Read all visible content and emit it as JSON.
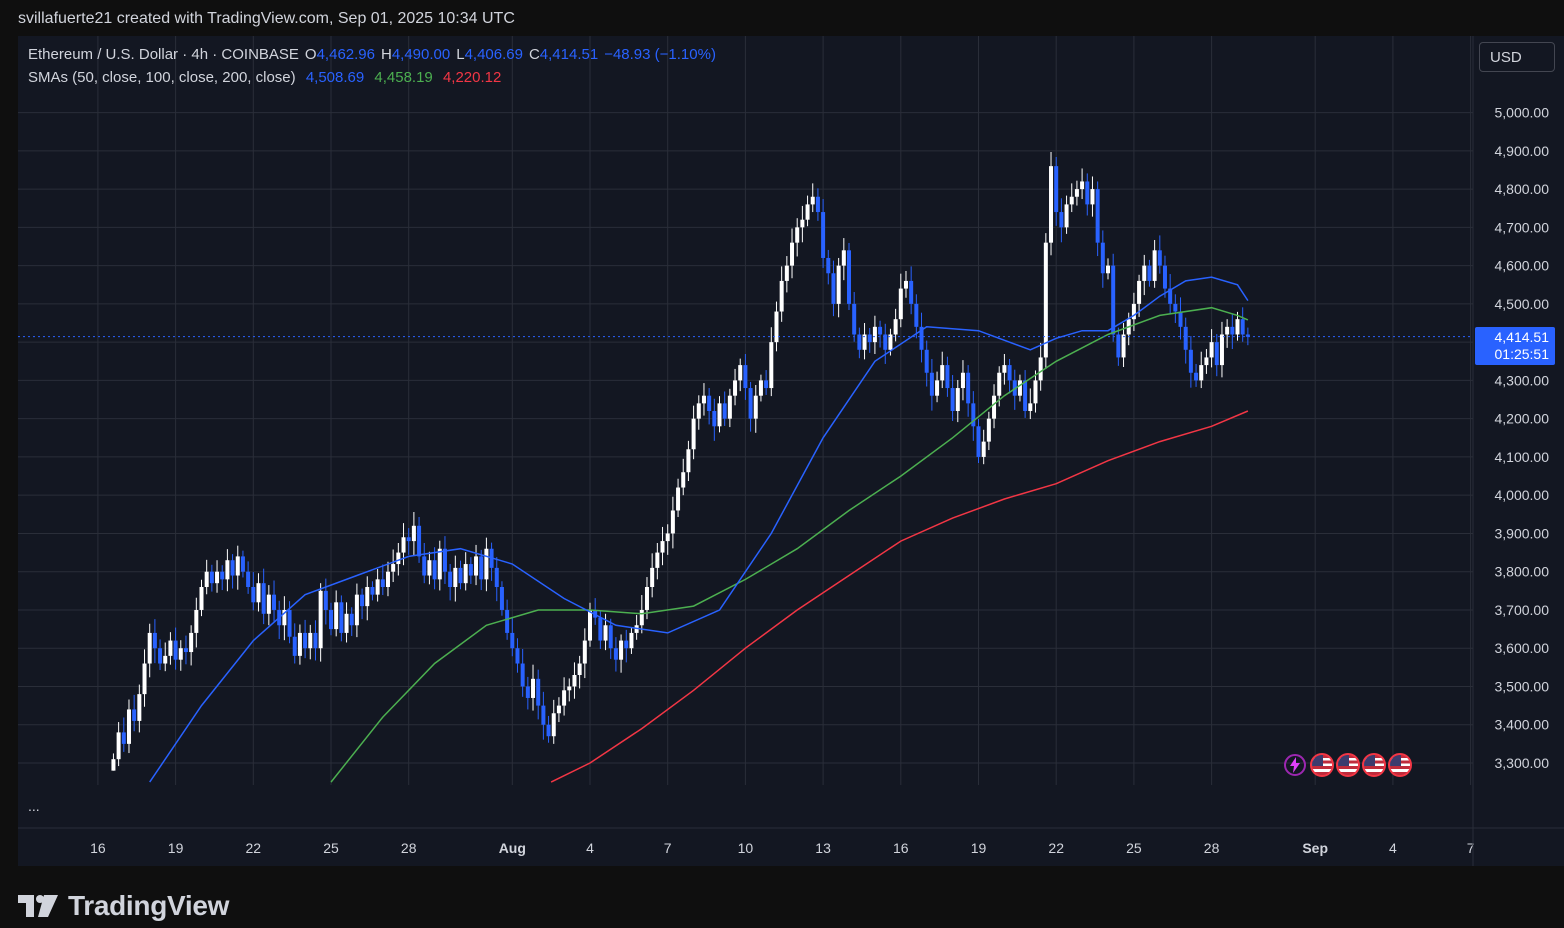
{
  "header": {
    "attribution": "svillafuerte21 created with TradingView.com, Sep 01, 2025 10:34 UTC"
  },
  "legend": {
    "symbol": "Ethereum / U.S. Dollar · 4h · COINBASE",
    "o_label": "O",
    "o_value": "4,462.96",
    "h_label": "H",
    "h_value": "4,490.00",
    "l_label": "L",
    "l_value": "4,406.69",
    "c_label": "C",
    "c_value": "4,414.51",
    "change": "−48.93 (−1.10%)",
    "sma_label": "SMAs (50, close, 100, close, 200, close)",
    "sma50": "4,508.69",
    "sma100": "4,458.19",
    "sma200": "4,220.12"
  },
  "currency_button": "USD",
  "last_price": {
    "price": "4,414.51",
    "countdown": "01:25:51"
  },
  "more_button": "...",
  "footer": {
    "brand": "TradingView"
  },
  "colors": {
    "up": "#ffffff",
    "down": "#2962ff",
    "sma50": "#2962ff",
    "sma100": "#4caf50",
    "sma200": "#f23645",
    "background": "#131722",
    "grid": "#2a2e39"
  },
  "chart_data": {
    "type": "candlestick",
    "ylim": [
      3250,
      5100
    ],
    "y_ticks": [
      3300,
      3400,
      3500,
      3600,
      3700,
      3800,
      3900,
      4000,
      4100,
      4200,
      4300,
      4400,
      4500,
      4600,
      4700,
      4800,
      4900,
      5000
    ],
    "y_tick_labels": [
      "3,300.00",
      "3,400.00",
      "3,500.00",
      "3,600.00",
      "3,700.00",
      "3,800.00",
      "3,900.00",
      "4,000.00",
      "4,100.00",
      "4,200.00",
      "4,300.00",
      "4,400.00",
      "4,500.00",
      "4,600.00",
      "4,700.00",
      "4,800.00",
      "4,900.00",
      "5,000.00"
    ],
    "x_day_range": [
      0,
      55.5
    ],
    "x_ticks": [
      {
        "day": 1,
        "label": "16"
      },
      {
        "day": 4,
        "label": "19"
      },
      {
        "day": 7,
        "label": "22"
      },
      {
        "day": 10,
        "label": "25"
      },
      {
        "day": 13,
        "label": "28"
      },
      {
        "day": 17,
        "label": "Aug"
      },
      {
        "day": 20,
        "label": "4"
      },
      {
        "day": 23,
        "label": "7"
      },
      {
        "day": 26,
        "label": "10"
      },
      {
        "day": 29,
        "label": "13"
      },
      {
        "day": 32,
        "label": "16"
      },
      {
        "day": 35,
        "label": "19"
      },
      {
        "day": 38,
        "label": "22"
      },
      {
        "day": 41,
        "label": "25"
      },
      {
        "day": 44,
        "label": "28"
      },
      {
        "day": 48,
        "label": "Sep"
      },
      {
        "day": 51,
        "label": "4"
      },
      {
        "day": 54,
        "label": "7"
      }
    ],
    "series_close": [
      [
        1.6,
        3310
      ],
      [
        1.8,
        3380
      ],
      [
        2.0,
        3350
      ],
      [
        2.2,
        3440
      ],
      [
        2.4,
        3410
      ],
      [
        2.6,
        3480
      ],
      [
        2.8,
        3560
      ],
      [
        3.0,
        3640
      ],
      [
        3.2,
        3600
      ],
      [
        3.4,
        3560
      ],
      [
        3.6,
        3580
      ],
      [
        3.8,
        3620
      ],
      [
        4.0,
        3570
      ],
      [
        4.2,
        3600
      ],
      [
        4.4,
        3590
      ],
      [
        4.6,
        3640
      ],
      [
        4.8,
        3700
      ],
      [
        5.0,
        3760
      ],
      [
        5.2,
        3800
      ],
      [
        5.4,
        3770
      ],
      [
        5.6,
        3800
      ],
      [
        5.8,
        3780
      ],
      [
        6.0,
        3830
      ],
      [
        6.2,
        3790
      ],
      [
        6.4,
        3840
      ],
      [
        6.6,
        3800
      ],
      [
        6.8,
        3760
      ],
      [
        7.0,
        3720
      ],
      [
        7.2,
        3770
      ],
      [
        7.4,
        3690
      ],
      [
        7.6,
        3740
      ],
      [
        7.8,
        3700
      ],
      [
        8.0,
        3660
      ],
      [
        8.2,
        3700
      ],
      [
        8.4,
        3630
      ],
      [
        8.6,
        3580
      ],
      [
        8.8,
        3640
      ],
      [
        9.0,
        3600
      ],
      [
        9.2,
        3640
      ],
      [
        9.4,
        3600
      ],
      [
        9.6,
        3750
      ],
      [
        9.8,
        3700
      ],
      [
        10.0,
        3650
      ],
      [
        10.2,
        3720
      ],
      [
        10.4,
        3640
      ],
      [
        10.6,
        3690
      ],
      [
        10.8,
        3660
      ],
      [
        11.0,
        3740
      ],
      [
        11.2,
        3710
      ],
      [
        11.4,
        3760
      ],
      [
        11.6,
        3740
      ],
      [
        11.8,
        3780
      ],
      [
        12.0,
        3760
      ],
      [
        12.2,
        3800
      ],
      [
        12.4,
        3820
      ],
      [
        12.6,
        3850
      ],
      [
        12.8,
        3890
      ],
      [
        13.0,
        3880
      ],
      [
        13.2,
        3920
      ],
      [
        13.4,
        3840
      ],
      [
        13.6,
        3790
      ],
      [
        13.8,
        3830
      ],
      [
        14.0,
        3780
      ],
      [
        14.2,
        3860
      ],
      [
        14.4,
        3800
      ],
      [
        14.6,
        3760
      ],
      [
        14.8,
        3810
      ],
      [
        15.0,
        3770
      ],
      [
        15.2,
        3820
      ],
      [
        15.4,
        3790
      ],
      [
        15.6,
        3840
      ],
      [
        15.8,
        3780
      ],
      [
        16.0,
        3860
      ],
      [
        16.2,
        3810
      ],
      [
        16.4,
        3760
      ],
      [
        16.6,
        3700
      ],
      [
        16.8,
        3640
      ],
      [
        17.0,
        3600
      ],
      [
        17.2,
        3560
      ],
      [
        17.4,
        3500
      ],
      [
        17.6,
        3470
      ],
      [
        17.8,
        3520
      ],
      [
        18.0,
        3450
      ],
      [
        18.2,
        3400
      ],
      [
        18.4,
        3370
      ],
      [
        18.6,
        3430
      ],
      [
        18.8,
        3450
      ],
      [
        19.0,
        3490
      ],
      [
        19.2,
        3500
      ],
      [
        19.4,
        3530
      ],
      [
        19.6,
        3560
      ],
      [
        19.8,
        3620
      ],
      [
        20.0,
        3700
      ],
      [
        20.2,
        3680
      ],
      [
        20.4,
        3620
      ],
      [
        20.6,
        3660
      ],
      [
        20.8,
        3600
      ],
      [
        21.0,
        3570
      ],
      [
        21.2,
        3620
      ],
      [
        21.4,
        3600
      ],
      [
        21.6,
        3640
      ],
      [
        21.8,
        3660
      ],
      [
        22.0,
        3700
      ],
      [
        22.2,
        3760
      ],
      [
        22.4,
        3810
      ],
      [
        22.6,
        3850
      ],
      [
        22.8,
        3880
      ],
      [
        23.0,
        3900
      ],
      [
        23.2,
        3960
      ],
      [
        23.4,
        4020
      ],
      [
        23.6,
        4060
      ],
      [
        23.8,
        4120
      ],
      [
        24.0,
        4200
      ],
      [
        24.2,
        4240
      ],
      [
        24.4,
        4260
      ],
      [
        24.6,
        4220
      ],
      [
        24.8,
        4180
      ],
      [
        25.0,
        4240
      ],
      [
        25.2,
        4200
      ],
      [
        25.4,
        4260
      ],
      [
        25.6,
        4300
      ],
      [
        25.8,
        4340
      ],
      [
        26.0,
        4280
      ],
      [
        26.2,
        4200
      ],
      [
        26.4,
        4260
      ],
      [
        26.6,
        4300
      ],
      [
        26.8,
        4280
      ],
      [
        27.0,
        4400
      ],
      [
        27.2,
        4480
      ],
      [
        27.4,
        4560
      ],
      [
        27.6,
        4600
      ],
      [
        27.8,
        4660
      ],
      [
        28.0,
        4700
      ],
      [
        28.2,
        4720
      ],
      [
        28.4,
        4760
      ],
      [
        28.6,
        4780
      ],
      [
        28.8,
        4740
      ],
      [
        29.0,
        4620
      ],
      [
        29.2,
        4580
      ],
      [
        29.4,
        4500
      ],
      [
        29.6,
        4600
      ],
      [
        29.8,
        4640
      ],
      [
        30.0,
        4500
      ],
      [
        30.2,
        4420
      ],
      [
        30.4,
        4380
      ],
      [
        30.6,
        4420
      ],
      [
        30.8,
        4400
      ],
      [
        31.0,
        4440
      ],
      [
        31.2,
        4420
      ],
      [
        31.4,
        4380
      ],
      [
        31.6,
        4420
      ],
      [
        31.8,
        4460
      ],
      [
        32.0,
        4540
      ],
      [
        32.2,
        4560
      ],
      [
        32.4,
        4500
      ],
      [
        32.6,
        4440
      ],
      [
        32.8,
        4380
      ],
      [
        33.0,
        4320
      ],
      [
        33.2,
        4260
      ],
      [
        33.4,
        4300
      ],
      [
        33.6,
        4340
      ],
      [
        33.8,
        4280
      ],
      [
        34.0,
        4220
      ],
      [
        34.2,
        4280
      ],
      [
        34.4,
        4320
      ],
      [
        34.6,
        4240
      ],
      [
        34.8,
        4180
      ],
      [
        35.0,
        4100
      ],
      [
        35.2,
        4140
      ],
      [
        35.4,
        4200
      ],
      [
        35.6,
        4260
      ],
      [
        35.8,
        4320
      ],
      [
        36.0,
        4340
      ],
      [
        36.2,
        4300
      ],
      [
        36.4,
        4260
      ],
      [
        36.6,
        4300
      ],
      [
        36.8,
        4220
      ],
      [
        37.0,
        4240
      ],
      [
        37.2,
        4300
      ],
      [
        37.4,
        4360
      ],
      [
        37.6,
        4660
      ],
      [
        37.8,
        4860
      ],
      [
        38.0,
        4740
      ],
      [
        38.2,
        4700
      ],
      [
        38.4,
        4760
      ],
      [
        38.6,
        4780
      ],
      [
        38.8,
        4800
      ],
      [
        39.0,
        4820
      ],
      [
        39.2,
        4760
      ],
      [
        39.4,
        4800
      ],
      [
        39.6,
        4660
      ],
      [
        39.8,
        4580
      ],
      [
        40.0,
        4600
      ],
      [
        40.2,
        4420
      ],
      [
        40.4,
        4360
      ],
      [
        40.6,
        4420
      ],
      [
        40.8,
        4460
      ],
      [
        41.0,
        4500
      ],
      [
        41.2,
        4560
      ],
      [
        41.4,
        4600
      ],
      [
        41.6,
        4560
      ],
      [
        41.8,
        4640
      ],
      [
        42.0,
        4600
      ],
      [
        42.2,
        4540
      ],
      [
        42.4,
        4500
      ],
      [
        42.6,
        4480
      ],
      [
        42.8,
        4440
      ],
      [
        43.0,
        4380
      ],
      [
        43.2,
        4320
      ],
      [
        43.4,
        4300
      ],
      [
        43.6,
        4340
      ],
      [
        43.8,
        4360
      ],
      [
        44.0,
        4400
      ],
      [
        44.2,
        4340
      ],
      [
        44.4,
        4420
      ],
      [
        44.6,
        4440
      ],
      [
        44.8,
        4420
      ],
      [
        45.0,
        4460
      ],
      [
        45.2,
        4420
      ],
      [
        45.4,
        4414
      ]
    ],
    "sma50": [
      [
        3,
        3250
      ],
      [
        5,
        3450
      ],
      [
        7,
        3620
      ],
      [
        9,
        3740
      ],
      [
        11,
        3790
      ],
      [
        13,
        3840
      ],
      [
        15,
        3860
      ],
      [
        17,
        3820
      ],
      [
        19,
        3730
      ],
      [
        21,
        3660
      ],
      [
        23,
        3640
      ],
      [
        25,
        3700
      ],
      [
        27,
        3900
      ],
      [
        29,
        4150
      ],
      [
        31,
        4350
      ],
      [
        33,
        4440
      ],
      [
        35,
        4430
      ],
      [
        37,
        4380
      ],
      [
        38,
        4410
      ],
      [
        39,
        4430
      ],
      [
        40,
        4430
      ],
      [
        41,
        4470
      ],
      [
        42,
        4520
      ],
      [
        43,
        4560
      ],
      [
        44,
        4570
      ],
      [
        45,
        4550
      ],
      [
        45.4,
        4508.69
      ]
    ],
    "sma100": [
      [
        10,
        3250
      ],
      [
        12,
        3420
      ],
      [
        14,
        3560
      ],
      [
        16,
        3660
      ],
      [
        18,
        3700
      ],
      [
        20,
        3700
      ],
      [
        22,
        3690
      ],
      [
        24,
        3710
      ],
      [
        26,
        3780
      ],
      [
        28,
        3860
      ],
      [
        30,
        3960
      ],
      [
        32,
        4050
      ],
      [
        34,
        4150
      ],
      [
        36,
        4260
      ],
      [
        38,
        4350
      ],
      [
        40,
        4420
      ],
      [
        42,
        4470
      ],
      [
        44,
        4490
      ],
      [
        45,
        4470
      ],
      [
        45.4,
        4458.19
      ]
    ],
    "sma200": [
      [
        18.5,
        3250
      ],
      [
        20,
        3300
      ],
      [
        22,
        3390
      ],
      [
        24,
        3490
      ],
      [
        26,
        3600
      ],
      [
        28,
        3700
      ],
      [
        30,
        3790
      ],
      [
        32,
        3880
      ],
      [
        34,
        3940
      ],
      [
        36,
        3990
      ],
      [
        38,
        4030
      ],
      [
        40,
        4090
      ],
      [
        42,
        4140
      ],
      [
        44,
        4180
      ],
      [
        45.4,
        4220.12
      ]
    ]
  }
}
